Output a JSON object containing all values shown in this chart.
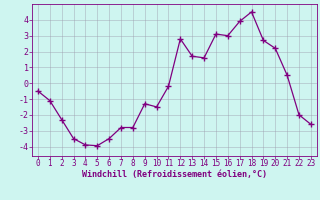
{
  "x": [
    0,
    1,
    2,
    3,
    4,
    5,
    6,
    7,
    8,
    9,
    10,
    11,
    12,
    13,
    14,
    15,
    16,
    17,
    18,
    19,
    20,
    21,
    22,
    23
  ],
  "y": [
    -0.5,
    -1.1,
    -2.3,
    -3.5,
    -3.9,
    -3.95,
    -3.5,
    -2.8,
    -2.8,
    -1.3,
    -1.5,
    -0.2,
    2.8,
    1.7,
    1.6,
    3.1,
    3.0,
    3.9,
    4.5,
    2.7,
    2.2,
    0.5,
    -2.0,
    -2.6
  ],
  "line_color": "#800080",
  "marker": "+",
  "marker_size": 4,
  "bg_color": "#cef5f0",
  "grid_color": "#9999aa",
  "xlabel": "Windchill (Refroidissement éolien,°C)",
  "xlim": [
    -0.5,
    23.5
  ],
  "ylim": [
    -4.6,
    5.0
  ],
  "yticks": [
    -4,
    -3,
    -2,
    -1,
    0,
    1,
    2,
    3,
    4
  ],
  "xticks": [
    0,
    1,
    2,
    3,
    4,
    5,
    6,
    7,
    8,
    9,
    10,
    11,
    12,
    13,
    14,
    15,
    16,
    17,
    18,
    19,
    20,
    21,
    22,
    23
  ],
  "label_color": "#800080",
  "tick_color": "#800080",
  "spine_color": "#800080",
  "tick_fontsize": 5.5,
  "label_fontsize": 6.0
}
